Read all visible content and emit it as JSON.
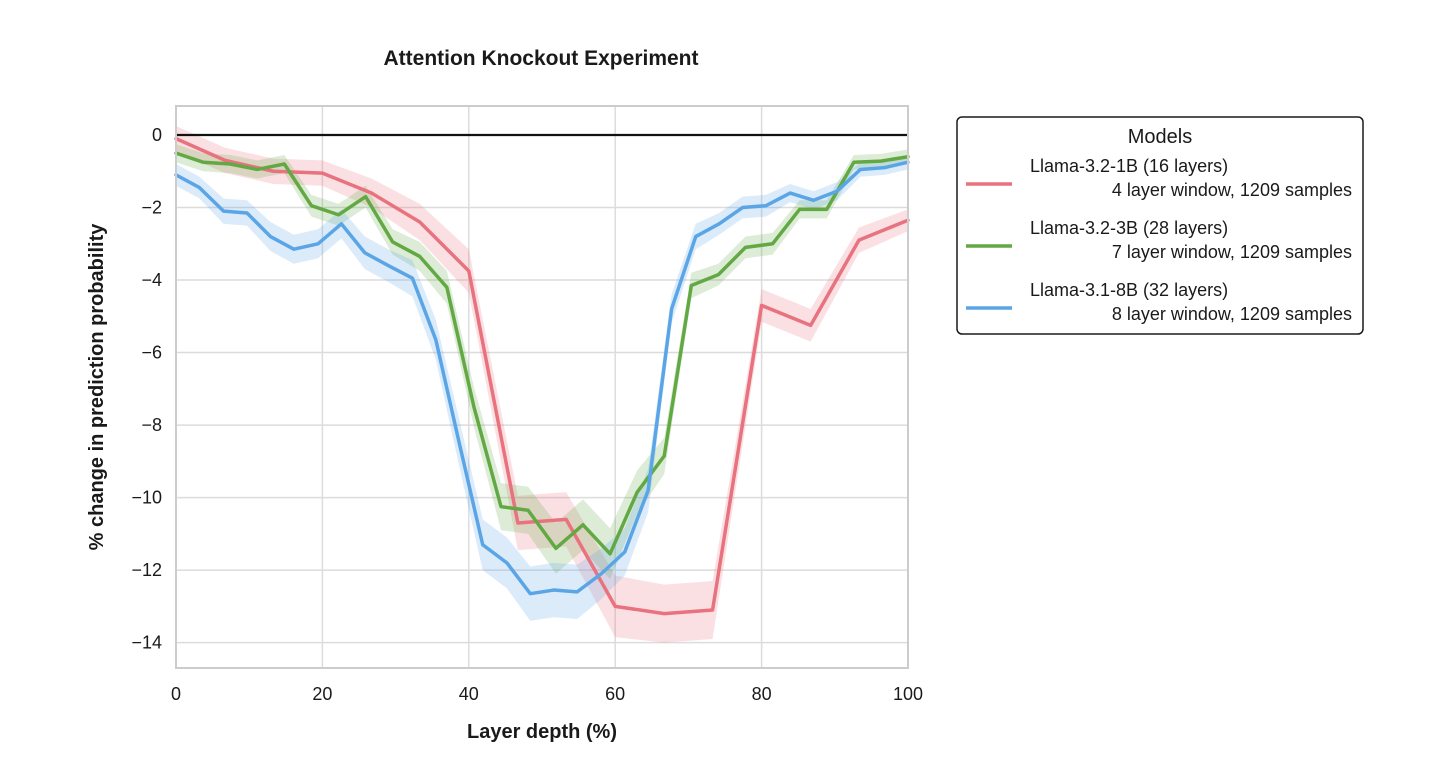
{
  "chart_data": {
    "type": "line",
    "title": "Attention Knockout Experiment",
    "xlabel": "Layer depth (%)",
    "ylabel": "% change in prediction probability",
    "xlim": [
      0,
      100
    ],
    "ylim": [
      -14.7,
      0.8
    ],
    "xticks": [
      0,
      20,
      40,
      60,
      80,
      100
    ],
    "xtick_labels": [
      "0",
      "20",
      "40",
      "60",
      "80",
      "100"
    ],
    "yticks": [
      0,
      -2,
      -4,
      -6,
      -8,
      -10,
      -12,
      -14
    ],
    "ytick_labels": [
      "0",
      "−2",
      "−4",
      "−6",
      "−8",
      "−10",
      "−12",
      "−14"
    ],
    "grid": true,
    "reference_line": 0,
    "legend": {
      "title": "Models",
      "placement": "outside-right-top"
    },
    "series": [
      {
        "name": "Llama-3.2-1B (16 layers)",
        "detail": "4 layer window, 1209 samples",
        "color": "#e8727e",
        "x": [
          0,
          6.7,
          13.3,
          20,
          26.7,
          33.3,
          40,
          46.7,
          53.3,
          60,
          66.7,
          73.3,
          80,
          86.7,
          93.3,
          100
        ],
        "y": [
          -0.1,
          -0.7,
          -1.0,
          -1.05,
          -1.6,
          -2.4,
          -3.75,
          -10.7,
          -10.6,
          -13.0,
          -13.2,
          -13.1,
          -4.7,
          -5.25,
          -2.9,
          -2.35
        ],
        "band": [
          0.35,
          0.35,
          0.35,
          0.35,
          0.4,
          0.5,
          0.6,
          0.75,
          0.75,
          0.85,
          0.8,
          0.8,
          0.45,
          0.45,
          0.35,
          0.3
        ]
      },
      {
        "name": "Llama-3.2-3B (28 layers)",
        "detail": "7 layer window, 1209 samples",
        "color": "#62a944",
        "x": [
          0,
          3.7,
          7.4,
          11.1,
          14.8,
          18.5,
          22.2,
          25.9,
          29.6,
          33.3,
          37.0,
          40.7,
          44.4,
          48.1,
          51.9,
          55.6,
          59.3,
          63.0,
          66.7,
          70.4,
          74.1,
          77.8,
          81.5,
          85.2,
          88.9,
          92.6,
          96.3,
          100
        ],
        "y": [
          -0.5,
          -0.75,
          -0.8,
          -0.95,
          -0.8,
          -1.95,
          -2.2,
          -1.7,
          -2.95,
          -3.35,
          -4.2,
          -7.5,
          -10.25,
          -10.35,
          -11.4,
          -10.75,
          -11.55,
          -9.85,
          -8.85,
          -4.15,
          -3.85,
          -3.1,
          -3.0,
          -2.05,
          -2.05,
          -0.75,
          -0.72,
          -0.6
        ],
        "band": [
          0.25,
          0.25,
          0.25,
          0.25,
          0.25,
          0.3,
          0.3,
          0.3,
          0.35,
          0.4,
          0.45,
          0.55,
          0.65,
          0.65,
          0.7,
          0.7,
          0.7,
          0.6,
          0.5,
          0.35,
          0.3,
          0.3,
          0.3,
          0.25,
          0.25,
          0.2,
          0.2,
          0.2
        ]
      },
      {
        "name": "Llama-3.1-8B (32 layers)",
        "detail": "8 layer window, 1209 samples",
        "color": "#5aa5e6",
        "x": [
          0,
          3.2,
          6.5,
          9.7,
          12.9,
          16.1,
          19.4,
          22.6,
          25.8,
          29.0,
          32.3,
          35.5,
          38.7,
          41.9,
          45.2,
          48.4,
          51.6,
          54.8,
          58.1,
          61.3,
          64.5,
          67.7,
          71.0,
          74.2,
          77.4,
          80.6,
          83.9,
          87.1,
          90.3,
          93.5,
          96.8,
          100
        ],
        "y": [
          -1.1,
          -1.45,
          -2.1,
          -2.15,
          -2.8,
          -3.15,
          -3.0,
          -2.45,
          -3.25,
          -3.6,
          -3.95,
          -5.65,
          -8.5,
          -11.3,
          -11.8,
          -12.65,
          -12.55,
          -12.6,
          -12.1,
          -11.5,
          -9.8,
          -4.8,
          -2.8,
          -2.45,
          -2.0,
          -1.95,
          -1.6,
          -1.8,
          -1.55,
          -0.95,
          -0.9,
          -0.75
        ],
        "band": [
          0.3,
          0.3,
          0.35,
          0.35,
          0.4,
          0.4,
          0.4,
          0.4,
          0.45,
          0.45,
          0.5,
          0.55,
          0.65,
          0.7,
          0.7,
          0.75,
          0.75,
          0.75,
          0.7,
          0.65,
          0.6,
          0.4,
          0.35,
          0.3,
          0.3,
          0.3,
          0.25,
          0.25,
          0.25,
          0.2,
          0.2,
          0.2
        ]
      }
    ]
  }
}
